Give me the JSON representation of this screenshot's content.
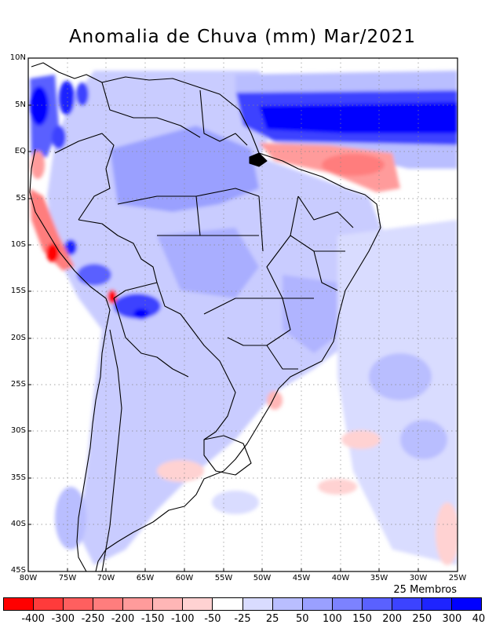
{
  "title": "Anomalia de Chuva (mm) Mar/2021",
  "members_label": "25 Membros",
  "lat_labels": [
    "10N",
    "5N",
    "EQ",
    "5S",
    "10S",
    "15S",
    "20S",
    "25S",
    "30S",
    "35S",
    "40S",
    "45S"
  ],
  "lon_labels": [
    "80W",
    "75W",
    "70W",
    "65W",
    "60W",
    "55W",
    "50W",
    "45W",
    "40W",
    "35W",
    "30W",
    "25W"
  ],
  "legend": {
    "colors": [
      "#ff0000",
      "#ff3b3b",
      "#ff5f5f",
      "#ff7d7d",
      "#ff9b9b",
      "#ffb6b6",
      "#ffd2d2",
      "#ffffff",
      "#d9dcff",
      "#b9beff",
      "#9aa0ff",
      "#7c82ff",
      "#5a61ff",
      "#3c43ff",
      "#1e24ff",
      "#0000ff"
    ],
    "labels": [
      "-400",
      "-300",
      "-250",
      "-200",
      "-150",
      "-100",
      "-50",
      "-25",
      "25",
      "50",
      "100",
      "150",
      "200",
      "250",
      "300",
      "400"
    ]
  }
}
